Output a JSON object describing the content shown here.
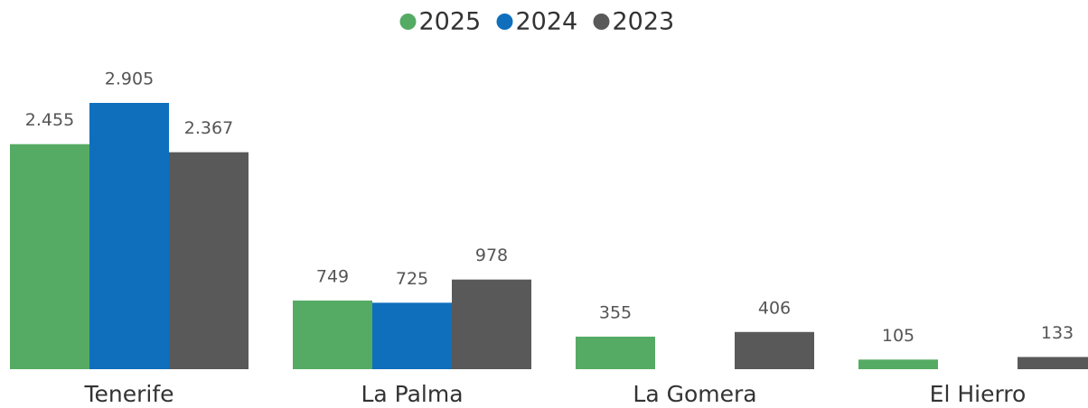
{
  "chart_data": {
    "type": "bar",
    "categories": [
      "Tenerife",
      "La Palma",
      "La Gomera",
      "El Hierro"
    ],
    "series": [
      {
        "name": "2025",
        "color": "#55ab64",
        "values": [
          2455,
          749,
          355,
          105
        ],
        "value_labels": [
          "2.455",
          "749",
          "355",
          "105"
        ]
      },
      {
        "name": "2024",
        "color": "#0f6fbd",
        "values": [
          2905,
          725,
          null,
          null
        ],
        "value_labels": [
          "2.905",
          "725",
          null,
          null
        ]
      },
      {
        "name": "2023",
        "color": "#595959",
        "values": [
          2367,
          978,
          406,
          133
        ],
        "value_labels": [
          "2.367",
          "978",
          "406",
          "133"
        ]
      }
    ],
    "legend": "top"
  }
}
